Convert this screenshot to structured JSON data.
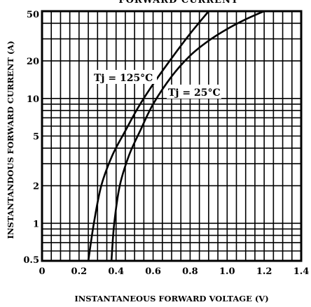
{
  "chart_data": {
    "type": "line",
    "title": "FORWARD CURRENT",
    "xlabel": "INSTANTANEOUS FORWARD VOLTAGE  (V)",
    "ylabel": "INSTANTANDOUS FORWARD CURRENT  (A)",
    "x_scale": "linear",
    "y_scale": "log",
    "xlim": [
      0,
      1.4
    ],
    "ylim": [
      0.5,
      50
    ],
    "x_ticks": [
      "0",
      "0.2",
      "0.4",
      "0.6",
      "0.8",
      "1.0",
      "1.2",
      "1.4"
    ],
    "x_tick_values": [
      0,
      0.2,
      0.4,
      0.6,
      0.8,
      1.0,
      1.2,
      1.4
    ],
    "y_ticks": [
      "0.5",
      "1",
      "2",
      "5",
      "10",
      "20",
      "50"
    ],
    "y_tick_values": [
      0.5,
      1,
      2,
      5,
      10,
      20,
      50
    ],
    "grid": true,
    "series": [
      {
        "name": "Tj = 125°C",
        "x": [
          0.25,
          0.28,
          0.32,
          0.38,
          0.45,
          0.52,
          0.6,
          0.7,
          0.8,
          0.9
        ],
        "y": [
          0.5,
          1,
          2,
          3.5,
          5.5,
          8.5,
          13,
          21,
          33,
          50
        ]
      },
      {
        "name": "Tj = 25°C",
        "x": [
          0.375,
          0.39,
          0.42,
          0.47,
          0.53,
          0.6,
          0.7,
          0.8,
          0.9,
          1.0,
          1.1,
          1.2
        ],
        "y": [
          0.5,
          1,
          2,
          3.5,
          5.5,
          9,
          15,
          22,
          29,
          36,
          43,
          50
        ]
      }
    ]
  }
}
